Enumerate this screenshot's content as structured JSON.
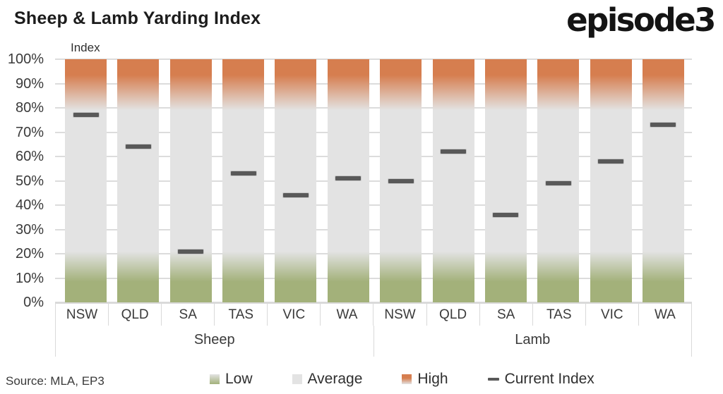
{
  "header": {
    "title": "Sheep & Lamb Yarding Index",
    "logo_text": "episode3"
  },
  "footer": {
    "source": "Source: MLA, EP3"
  },
  "legend": {
    "items": [
      {
        "id": "low",
        "label": "Low"
      },
      {
        "id": "average",
        "label": "Average"
      },
      {
        "id": "high",
        "label": "High"
      },
      {
        "id": "current",
        "label": "Current Index"
      }
    ]
  },
  "chart_data": {
    "type": "bar",
    "title": "Sheep & Lamb Yarding Index",
    "axis_title": "Index",
    "ylabel": "Index",
    "ylim": [
      0,
      100
    ],
    "yticks": [
      {
        "value": 0,
        "label": "0%"
      },
      {
        "value": 10,
        "label": "10%"
      },
      {
        "value": 20,
        "label": "20%"
      },
      {
        "value": 30,
        "label": "30%"
      },
      {
        "value": 40,
        "label": "40%"
      },
      {
        "value": 50,
        "label": "50%"
      },
      {
        "value": 60,
        "label": "60%"
      },
      {
        "value": 70,
        "label": "70%"
      },
      {
        "value": 80,
        "label": "80%"
      },
      {
        "value": 90,
        "label": "90%"
      },
      {
        "value": 100,
        "label": "100%"
      }
    ],
    "bands": [
      {
        "id": "low",
        "label": "Low",
        "range": [
          0,
          20
        ],
        "color": "#A3B17A"
      },
      {
        "id": "average",
        "label": "Average",
        "range": [
          20,
          80
        ],
        "color": "#E3E3E3"
      },
      {
        "id": "high",
        "label": "High",
        "range": [
          80,
          100
        ],
        "color": "#D67E4F"
      }
    ],
    "marker": {
      "label": "Current Index",
      "color": "#595959"
    },
    "groups": [
      {
        "label": "Sheep",
        "categories": [
          "NSW",
          "QLD",
          "SA",
          "TAS",
          "VIC",
          "WA"
        ],
        "current_index": [
          77,
          64,
          21,
          53,
          44,
          51
        ]
      },
      {
        "label": "Lamb",
        "categories": [
          "NSW",
          "QLD",
          "SA",
          "TAS",
          "VIC",
          "WA"
        ],
        "current_index": [
          50,
          62,
          36,
          49,
          58,
          73
        ]
      }
    ],
    "grid": true,
    "legend_position": "bottom"
  }
}
